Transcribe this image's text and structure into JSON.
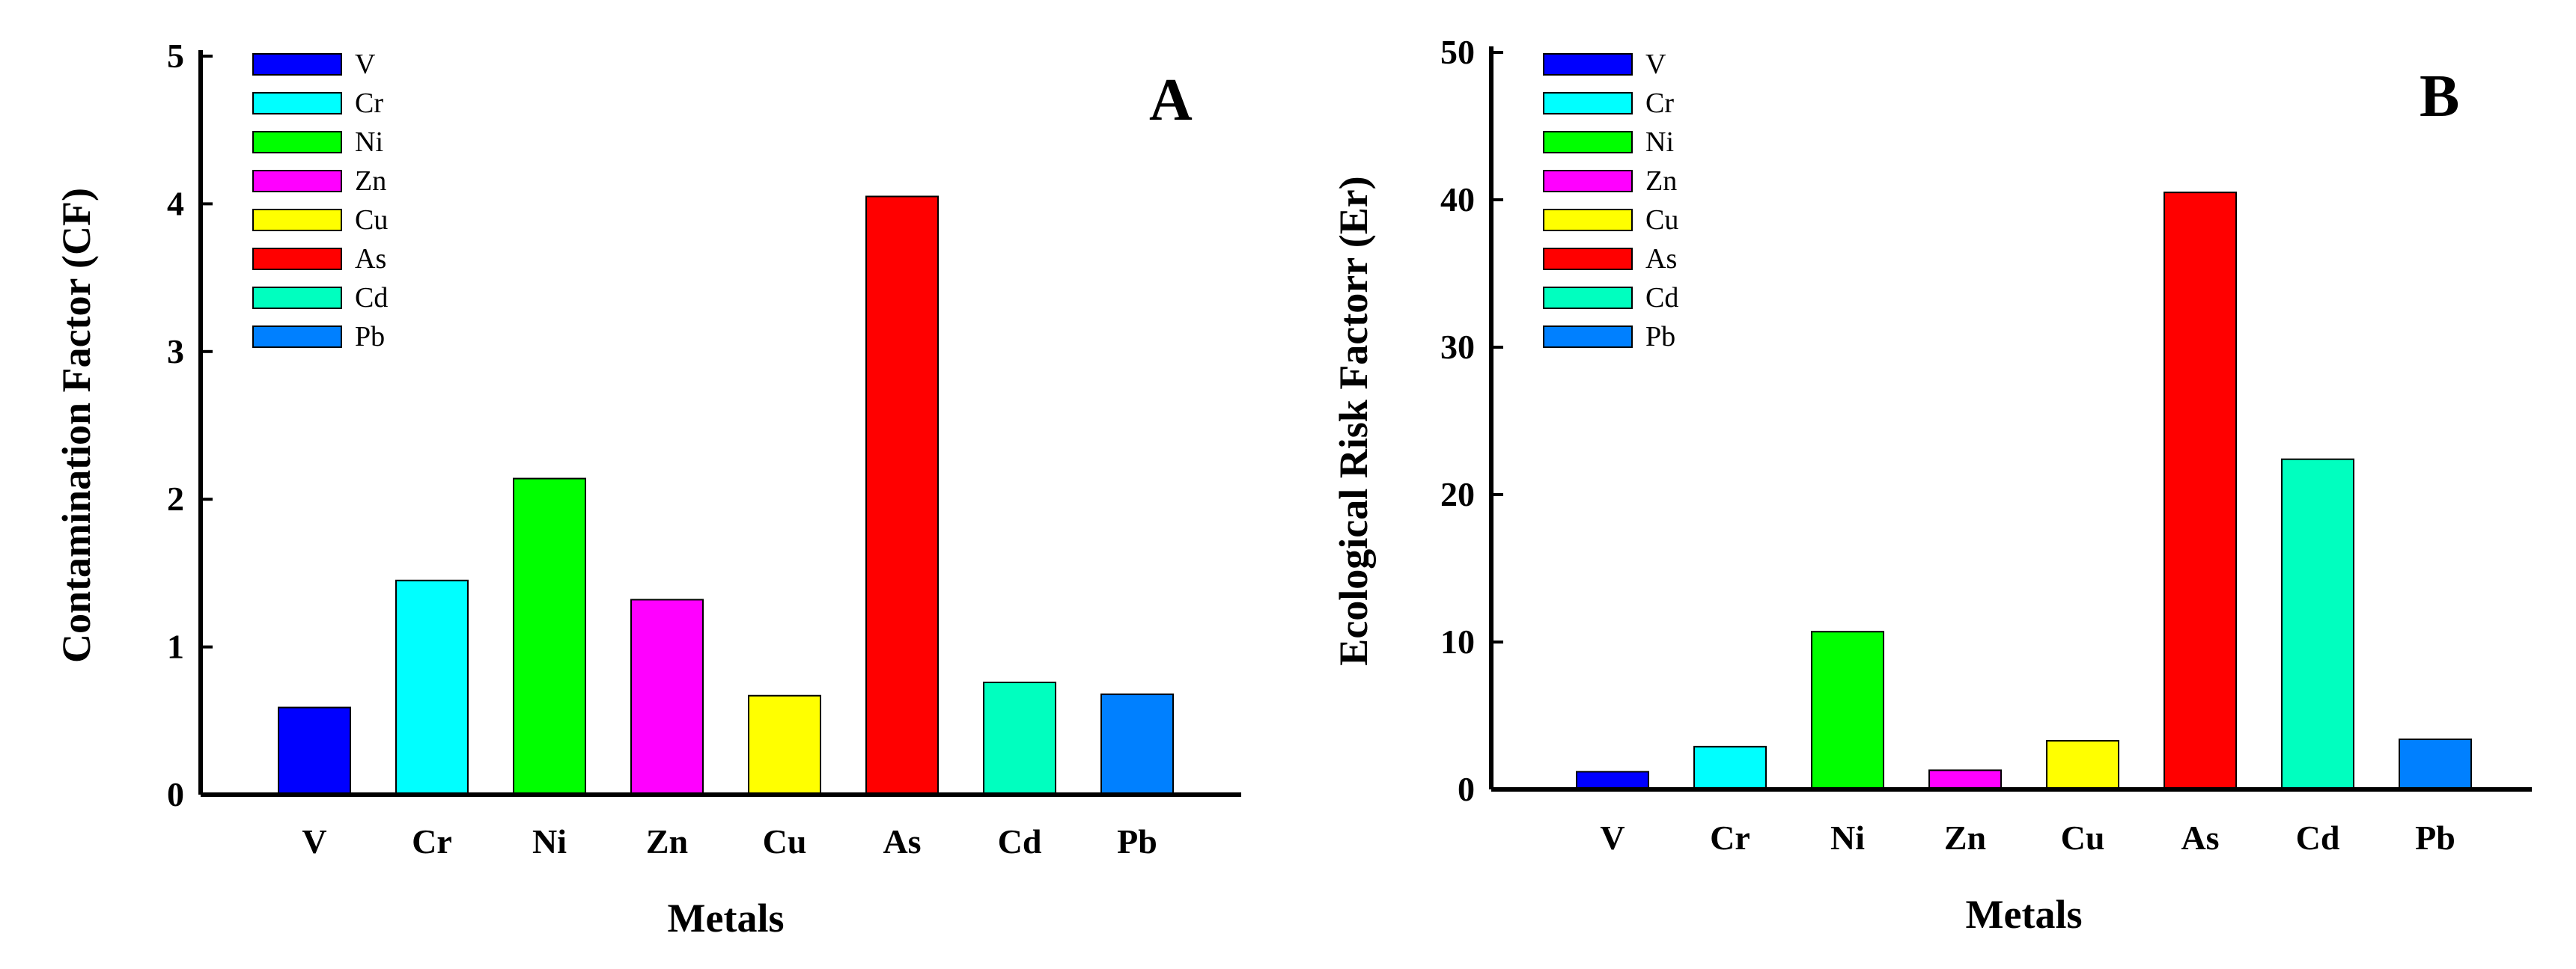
{
  "chart_data": [
    {
      "type": "bar",
      "panel": "A",
      "categories": [
        "V",
        "Cr",
        "Ni",
        "Zn",
        "Cu",
        "As",
        "Cd",
        "Pb"
      ],
      "values": [
        0.59,
        1.45,
        2.14,
        1.32,
        0.67,
        4.05,
        0.76,
        0.68
      ],
      "colors": [
        "#0000ff",
        "#00ffff",
        "#00ff00",
        "#ff00ff",
        "#ffff00",
        "#ff0000",
        "#00ffbf",
        "#0080ff"
      ],
      "xlabel": "Metals",
      "ylabel": "Contamination Factor (CF)",
      "ylim": [
        0,
        5
      ],
      "yticks": [
        0,
        1,
        2,
        3,
        4,
        5
      ],
      "ytick_labels": [
        "0",
        "1",
        "2",
        "3",
        "4",
        "5"
      ],
      "legend": [
        "V",
        "Cr",
        "Ni",
        "Zn",
        "Cu",
        "As",
        "Cd",
        "Pb"
      ],
      "legend_position": "top-left"
    },
    {
      "type": "bar",
      "panel": "B",
      "categories": [
        "V",
        "Cr",
        "Ni",
        "Zn",
        "Cu",
        "As",
        "Cd",
        "Pb"
      ],
      "values": [
        1.2,
        2.9,
        10.7,
        1.3,
        3.3,
        40.5,
        22.4,
        3.4
      ],
      "colors": [
        "#0000ff",
        "#00ffff",
        "#00ff00",
        "#ff00ff",
        "#ffff00",
        "#ff0000",
        "#00ffbf",
        "#0080ff"
      ],
      "xlabel": "Metals",
      "ylabel": "Ecological Risk Factorr (Er)",
      "ylim": [
        0,
        50
      ],
      "yticks": [
        0,
        10,
        20,
        30,
        40,
        50
      ],
      "ytick_labels": [
        "0",
        "10",
        "20",
        "30",
        "40",
        "50"
      ],
      "legend": [
        "V",
        "Cr",
        "Ni",
        "Zn",
        "Cu",
        "As",
        "Cd",
        "Pb"
      ],
      "legend_position": "top-left"
    }
  ]
}
